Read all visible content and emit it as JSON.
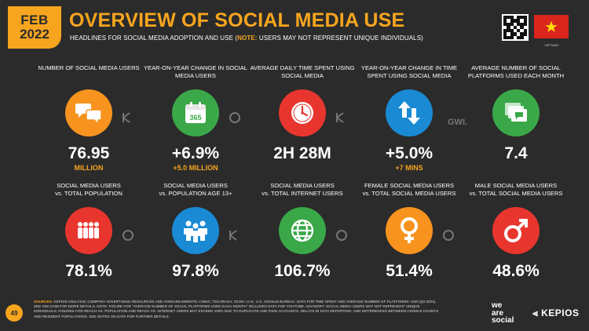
{
  "badge": {
    "month": "FEB",
    "year": "2022"
  },
  "header": {
    "title": "OVERVIEW OF SOCIAL MEDIA USE",
    "subtitle_pre": "HEADLINES FOR SOCIAL MEDIA ADOPTION AND USE (",
    "subtitle_note": "NOTE:",
    "subtitle_post": " USERS MAY NOT REPRESENT UNIQUE INDIVIDUALS)"
  },
  "country": {
    "name": "VIETNAM"
  },
  "row1": [
    {
      "label": "NUMBER OF SOCIAL MEDIA USERS",
      "value": "76.95",
      "sub": "MILLION"
    },
    {
      "label": "YEAR-ON-YEAR CHANGE IN SOCIAL MEDIA USERS",
      "value": "+6.9%",
      "sub": "+5.0 MILLION"
    },
    {
      "label": "AVERAGE DAILY TIME SPENT USING SOCIAL MEDIA",
      "value": "2H 28M",
      "sub": ""
    },
    {
      "label": "YEAR-ON-YEAR CHANGE IN TIME SPENT USING SOCIAL MEDIA",
      "value": "+5.0%",
      "sub": "+7 MINS"
    },
    {
      "label": "AVERAGE NUMBER OF SOCIAL PLATFORMS USED EACH MONTH",
      "value": "7.4",
      "sub": ""
    }
  ],
  "row2": [
    {
      "label": "SOCIAL MEDIA USERS",
      "label2": "vs. TOTAL POPULATION",
      "value": "78.1%"
    },
    {
      "label": "SOCIAL MEDIA USERS",
      "label2": "vs. POPULATION AGE 13+",
      "value": "97.8%"
    },
    {
      "label": "SOCIAL MEDIA USERS",
      "label2": "vs. TOTAL INTERNET USERS",
      "value": "106.7%"
    },
    {
      "label": "FEMALE SOCIAL MEDIA USERS",
      "label2": "vs. TOTAL SOCIAL MEDIA USERS",
      "value": "51.4%"
    },
    {
      "label": "MALE SOCIAL MEDIA USERS",
      "label2": "vs. TOTAL SOCIAL MEDIA USERS",
      "value": "48.6%"
    }
  ],
  "calendar_number": "365",
  "gwi": "GWI.",
  "footer": {
    "page": "49",
    "sources_label": "SOURCES:",
    "sources_text": "KEPIOS ANALYSIS; COMPANY ADVERTISING RESOURCES AND ANNOUNCEMENTS; CNNIC; TECHRASA; OCDH; U.N.; U.S. CENSUS BUREAU. DATA FOR TIME SPENT AND AVERAGE NUMBER OF PLATFORMS: GWI (Q3 2021). SEE GWI.COM FOR MORE DETAILS. NOTE: FIGURE FOR \"AVERAGE NUMBER OF SOCIAL PLATFORMS USED EACH MONTH\" INCLUDES DATA FOR YOUTUBE. ADVISORY: SOCIAL MEDIA USERS MAY NOT REPRESENT UNIQUE INDIVIDUALS. FIGURES FOR REACH vs. POPULATION AND REACH vs. INTERNET USERS MAY EXCEED 100% DUE TO DUPLICATE AND FAKE ACCOUNTS, DELAYS IN DATA REPORTING, AND DIFFERENCES BETWEEN CENSUS COUNTS AND RESIDENT POPULATIONS. SEE NOTES ON DATA FOR FURTHER DETAILS.",
    "brand1_line1": "we",
    "brand1_line2": "are",
    "brand1_line3": "social",
    "brand2": "KEPIOS"
  },
  "colors": {
    "accent": "#f7a51e",
    "orange": "#f7931e",
    "green": "#3aa849",
    "red": "#e8362f",
    "blue": "#1a8ad4"
  }
}
